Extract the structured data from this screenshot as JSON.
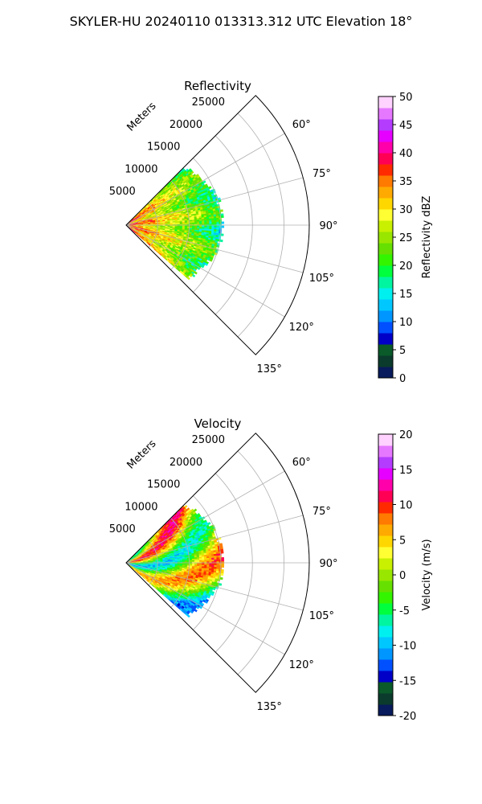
{
  "suptitle": "SKYLER-HU  20240110  013313.312 UTC Elevation 18°",
  "chart_data": [
    {
      "type": "heatmap",
      "projection": "polar-sector",
      "title": "Reflectivity",
      "azimuth_range_deg": [
        45,
        135
      ],
      "azimuth_ticks_deg": [
        60,
        75,
        90,
        105,
        120,
        135
      ],
      "azimuth_tick_labels": [
        "60°",
        "75°",
        "90°",
        "105°",
        "120°",
        "135°"
      ],
      "range_label": "Meters",
      "range_ticks": [
        5000,
        10000,
        15000,
        20000,
        25000
      ],
      "range_tick_labels": [
        "5000",
        "10000",
        "15000",
        "20000",
        "25000"
      ],
      "range_max": 29000,
      "grid": true,
      "data_azimuth_range_deg": [
        45,
        131
      ],
      "data_range_max": 15500,
      "colorbar": {
        "label": "Reflectivity dBZ",
        "ticks": [
          0,
          5,
          10,
          15,
          20,
          25,
          30,
          35,
          40,
          45,
          50
        ],
        "min": 0,
        "max": 50,
        "colors": [
          "#081b5c",
          "#0b3b2c",
          "#0a5a2a",
          "#0000c8",
          "#0050ff",
          "#0096ff",
          "#00c8ff",
          "#00f0f0",
          "#00f5a0",
          "#00ff3c",
          "#33f500",
          "#66e000",
          "#99e600",
          "#c8f000",
          "#ffff33",
          "#ffd700",
          "#ffaa00",
          "#ff7a00",
          "#ff2a00",
          "#ff0055",
          "#ff00aa",
          "#e600ff",
          "#b43cff",
          "#e678ff",
          "#ffd2ff"
        ]
      }
    },
    {
      "type": "heatmap",
      "projection": "polar-sector",
      "title": "Velocity",
      "azimuth_range_deg": [
        45,
        135
      ],
      "azimuth_ticks_deg": [
        60,
        75,
        90,
        105,
        120,
        135
      ],
      "azimuth_tick_labels": [
        "60°",
        "75°",
        "90°",
        "105°",
        "120°",
        "135°"
      ],
      "range_label": "Meters",
      "range_ticks": [
        5000,
        10000,
        15000,
        20000,
        25000
      ],
      "range_tick_labels": [
        "5000",
        "10000",
        "15000",
        "20000",
        "25000"
      ],
      "range_max": 29000,
      "grid": true,
      "data_azimuth_range_deg": [
        45,
        131
      ],
      "data_range_max": 15500,
      "colorbar": {
        "label": "Velocity (m/s)",
        "ticks": [
          -20,
          -15,
          -10,
          -5,
          0,
          5,
          10,
          15,
          20
        ],
        "min": -20,
        "max": 20,
        "colors": [
          "#081b5c",
          "#0b3b2c",
          "#0a5a2a",
          "#0000c8",
          "#0050ff",
          "#0096ff",
          "#00c8ff",
          "#00f0f0",
          "#00f5a0",
          "#00ff3c",
          "#33f500",
          "#66e000",
          "#99e600",
          "#c8f000",
          "#ffff33",
          "#ffd700",
          "#ffaa00",
          "#ff7a00",
          "#ff2a00",
          "#ff0055",
          "#ff00aa",
          "#e600ff",
          "#b43cff",
          "#e678ff",
          "#ffd2ff"
        ]
      }
    }
  ]
}
